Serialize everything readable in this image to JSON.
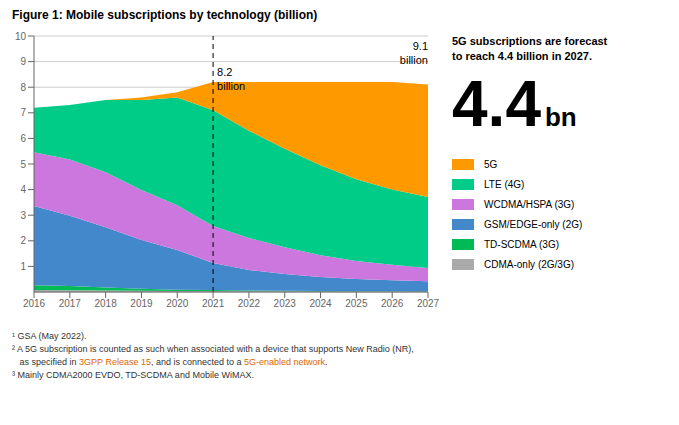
{
  "chart_data": {
    "type": "area",
    "stacked": true,
    "title": "Figure 1: Mobile subscriptions by technology (billion)",
    "x": [
      2016,
      2017,
      2018,
      2019,
      2020,
      2021,
      2022,
      2023,
      2024,
      2025,
      2026,
      2027
    ],
    "xlim": [
      2016,
      2027
    ],
    "xticks": [
      2016,
      2017,
      2018,
      2019,
      2020,
      2021,
      2022,
      2023,
      2024,
      2025,
      2026,
      2027
    ],
    "ylim": [
      0,
      10
    ],
    "yticks": [
      1,
      2,
      3,
      4,
      5,
      6,
      7,
      8,
      9,
      10
    ],
    "grid": true,
    "legend": "right",
    "series": [
      {
        "name": "CDMA-only (2G/3G)",
        "color": "#aaaaaa",
        "values": [
          0.08,
          0.07,
          0.06,
          0.05,
          0.04,
          0.04,
          0.03,
          0.03,
          0.02,
          0.02,
          0.02,
          0.01
        ]
      },
      {
        "name": "TD-SCDMA (3G)",
        "color": "#00bb55",
        "values": [
          0.18,
          0.16,
          0.12,
          0.08,
          0.05,
          0.04,
          0.03,
          0.02,
          0.02,
          0.01,
          0.01,
          0.01
        ]
      },
      {
        "name": "GSM/EDGE-only (2G)",
        "color": "#4488cc",
        "values": [
          3.1,
          2.75,
          2.35,
          1.9,
          1.55,
          1.05,
          0.8,
          0.65,
          0.55,
          0.48,
          0.43,
          0.4
        ]
      },
      {
        "name": "WCDMA/HSPA (3G)",
        "color": "#cc77dd",
        "values": [
          2.1,
          2.2,
          2.15,
          1.95,
          1.75,
          1.45,
          1.25,
          1.05,
          0.85,
          0.7,
          0.6,
          0.52
        ]
      },
      {
        "name": "LTE (4G)",
        "color": "#00cc88",
        "values": [
          1.74,
          2.12,
          2.82,
          3.52,
          4.21,
          4.52,
          4.19,
          3.85,
          3.51,
          3.19,
          2.94,
          2.77
        ]
      },
      {
        "name": "5G",
        "color": "#ff9900",
        "values": [
          0.0,
          0.0,
          0.0,
          0.1,
          0.2,
          1.1,
          1.9,
          2.6,
          3.25,
          3.8,
          4.2,
          4.4
        ]
      }
    ],
    "reference_line": {
      "x": 2021,
      "line_style": "dashed"
    },
    "annotations": [
      {
        "x": 2021,
        "y": 8.28,
        "lines": [
          "8.2",
          "billion"
        ]
      },
      {
        "x": 2027,
        "y": 9.28,
        "lines": [
          "9.1",
          "billion"
        ]
      }
    ],
    "panel": {
      "title": "5G subscriptions are forecast\nto reach 4.4 billion in 2027.",
      "big_number": "4.4",
      "big_number_suffix": "bn"
    },
    "footnotes": [
      [
        {
          "text": "¹ GSA (May 2022)."
        }
      ],
      [
        {
          "text": "² A 5G subscription is counted as such when associated with a device that supports New Radio (NR),"
        }
      ],
      [
        {
          "text": "   as specified in "
        },
        {
          "text": "3GPP Release 15",
          "color": "#dd6600"
        },
        {
          "text": ", and is connected to a "
        },
        {
          "text": "5G-enabled network",
          "color": "#dd6600"
        },
        {
          "text": "."
        }
      ],
      [
        {
          "text": "³ Mainly CDMA2000 EVDO, TD-SCDMA and Mobile WiMAX."
        }
      ]
    ]
  }
}
